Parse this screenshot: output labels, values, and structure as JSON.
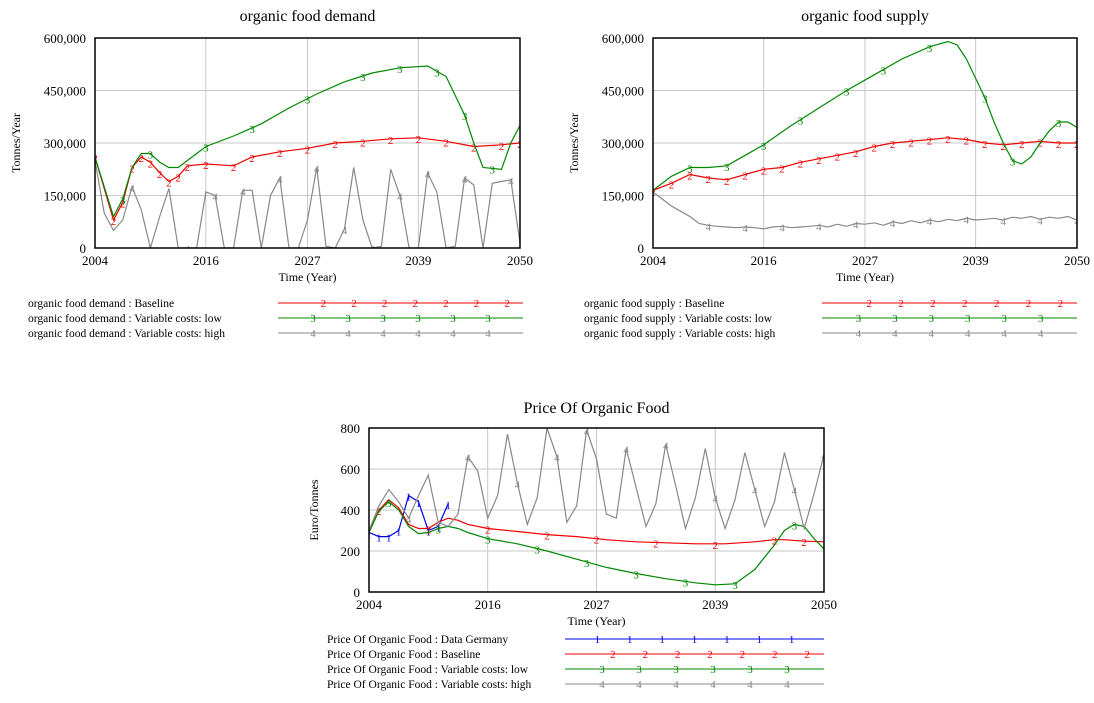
{
  "colors": {
    "data_germany": "#0000ee",
    "baseline": "#ee0000",
    "low": "#008800",
    "high": "#888888",
    "grid": "#c8c8c8"
  },
  "chart_data": [
    {
      "type": "line",
      "title": "organic food demand",
      "xlabel": "Time (Year)",
      "ylabel": "Tonnes/Year",
      "xlim": [
        2004,
        2050
      ],
      "ylim": [
        0,
        600000
      ],
      "xticks": [
        2004,
        2016,
        2027,
        2039,
        2050
      ],
      "xtick_labels": [
        "2004",
        "2016",
        "2027",
        "2039",
        "2050"
      ],
      "yticks": [
        0,
        150000,
        300000,
        450000,
        600000
      ],
      "ytick_labels": [
        "0",
        "150,000",
        "300,000",
        "450,000",
        "600,000"
      ],
      "grid": true,
      "legend_position": "bottom",
      "series": [
        {
          "name": "organic food demand : Baseline",
          "marker": "2",
          "color": "#ee0000",
          "x": [
            2004,
            2006,
            2007,
            2008,
            2009,
            2010,
            2011,
            2012,
            2013,
            2014,
            2016,
            2019,
            2021,
            2024,
            2027,
            2030,
            2033,
            2036,
            2039,
            2042,
            2045,
            2048,
            2050
          ],
          "y": [
            260000,
            80000,
            130000,
            230000,
            260000,
            245000,
            215000,
            190000,
            205000,
            235000,
            240000,
            235000,
            260000,
            275000,
            285000,
            300000,
            305000,
            312000,
            315000,
            305000,
            290000,
            295000,
            300000
          ]
        },
        {
          "name": "organic food demand : Variable costs: low",
          "marker": "3",
          "color": "#008800",
          "x": [
            2004,
            2006,
            2007,
            2008,
            2009,
            2010,
            2011,
            2012,
            2013,
            2014,
            2016,
            2019,
            2022,
            2025,
            2028,
            2031,
            2034,
            2037,
            2040,
            2042,
            2044,
            2045,
            2046,
            2048,
            2049,
            2050
          ],
          "y": [
            260000,
            90000,
            140000,
            230000,
            270000,
            270000,
            245000,
            230000,
            230000,
            250000,
            290000,
            320000,
            355000,
            400000,
            440000,
            475000,
            500000,
            515000,
            520000,
            490000,
            380000,
            300000,
            230000,
            225000,
            300000,
            350000
          ],
          "marker_x": [
            2007,
            2010,
            2016,
            2021,
            2027,
            2033,
            2037,
            2041,
            2044,
            2047
          ]
        },
        {
          "name": "organic food demand : Variable costs: high",
          "marker": "4",
          "color": "#888888",
          "x": [
            2004,
            2005,
            2006,
            2007,
            2008,
            2009,
            2010,
            2011,
            2012,
            2013,
            2014,
            2015,
            2016,
            2017,
            2018,
            2019,
            2020,
            2021,
            2022,
            2023,
            2024,
            2025,
            2026,
            2027,
            2028,
            2029,
            2030,
            2031,
            2032,
            2033,
            2034,
            2035,
            2036,
            2037,
            2038,
            2039,
            2040,
            2041,
            2042,
            2043,
            2044,
            2045,
            2046,
            2047,
            2048,
            2049,
            2050
          ],
          "y": [
            250000,
            100000,
            50000,
            80000,
            175000,
            110000,
            0,
            90000,
            170000,
            0,
            0,
            0,
            160000,
            150000,
            0,
            0,
            165000,
            165000,
            0,
            150000,
            200000,
            0,
            0,
            80000,
            230000,
            5000,
            0,
            55000,
            230000,
            80000,
            0,
            5000,
            225000,
            150000,
            0,
            0,
            215000,
            160000,
            0,
            5000,
            200000,
            180000,
            0,
            185000,
            190000,
            195000,
            15000
          ],
          "marker_x": [
            2008,
            2014,
            2017,
            2020,
            2024,
            2028,
            2031,
            2034,
            2037,
            2040,
            2044,
            2049
          ]
        }
      ]
    },
    {
      "type": "line",
      "title": "organic food supply",
      "xlabel": "Time (Year)",
      "ylabel": "Tonnes/Year",
      "xlim": [
        2004,
        2050
      ],
      "ylim": [
        0,
        600000
      ],
      "xticks": [
        2004,
        2016,
        2027,
        2039,
        2050
      ],
      "xtick_labels": [
        "2004",
        "2016",
        "2027",
        "2039",
        "2050"
      ],
      "yticks": [
        0,
        150000,
        300000,
        450000,
        600000
      ],
      "ytick_labels": [
        "0",
        "150,000",
        "300,000",
        "450,000",
        "600,000"
      ],
      "grid": true,
      "legend_position": "bottom",
      "series": [
        {
          "name": "organic food supply : Baseline",
          "marker": "2",
          "color": "#ee0000",
          "x": [
            2004,
            2006,
            2008,
            2010,
            2012,
            2014,
            2016,
            2018,
            2020,
            2022,
            2024,
            2026,
            2028,
            2030,
            2032,
            2034,
            2036,
            2038,
            2040,
            2042,
            2044,
            2046,
            2048,
            2050
          ],
          "y": [
            165000,
            185000,
            210000,
            200000,
            195000,
            210000,
            225000,
            230000,
            245000,
            255000,
            265000,
            275000,
            290000,
            300000,
            305000,
            310000,
            315000,
            310000,
            300000,
            295000,
            300000,
            305000,
            300000,
            300000
          ]
        },
        {
          "name": "organic food supply : Variable costs: low",
          "marker": "3",
          "color": "#008800",
          "x": [
            2004,
            2006,
            2008,
            2010,
            2012,
            2014,
            2016,
            2019,
            2022,
            2025,
            2028,
            2031,
            2034,
            2036,
            2037,
            2038,
            2040,
            2041,
            2042,
            2043,
            2044,
            2045,
            2046,
            2047,
            2048,
            2049,
            2050
          ],
          "y": [
            165000,
            205000,
            230000,
            230000,
            235000,
            265000,
            295000,
            350000,
            400000,
            450000,
            495000,
            540000,
            575000,
            590000,
            580000,
            540000,
            430000,
            360000,
            300000,
            250000,
            240000,
            260000,
            300000,
            335000,
            360000,
            360000,
            345000
          ],
          "marker_x": [
            2008,
            2012,
            2016,
            2020,
            2025,
            2029,
            2034,
            2040,
            2043,
            2048
          ]
        },
        {
          "name": "organic food supply : Variable costs: high",
          "marker": "4",
          "color": "#888888",
          "x": [
            2004,
            2005,
            2006,
            2007,
            2008,
            2009,
            2010,
            2011,
            2012,
            2013,
            2014,
            2015,
            2016,
            2017,
            2018,
            2019,
            2020,
            2021,
            2022,
            2023,
            2024,
            2025,
            2026,
            2027,
            2028,
            2029,
            2030,
            2031,
            2032,
            2033,
            2034,
            2035,
            2036,
            2037,
            2038,
            2039,
            2040,
            2041,
            2042,
            2043,
            2044,
            2045,
            2046,
            2047,
            2048,
            2049,
            2050
          ],
          "y": [
            160000,
            140000,
            120000,
            105000,
            90000,
            70000,
            65000,
            62000,
            60000,
            58000,
            60000,
            58000,
            55000,
            60000,
            62000,
            58000,
            60000,
            62000,
            65000,
            60000,
            68000,
            62000,
            70000,
            68000,
            72000,
            65000,
            75000,
            70000,
            78000,
            72000,
            80000,
            75000,
            82000,
            78000,
            85000,
            80000,
            82000,
            85000,
            80000,
            88000,
            85000,
            90000,
            82000,
            88000,
            85000,
            90000,
            80000
          ],
          "marker_x": [
            2010,
            2014,
            2018,
            2022,
            2026,
            2030,
            2034,
            2038,
            2042,
            2046,
            2050
          ]
        }
      ]
    },
    {
      "type": "line",
      "title": "Price Of Organic Food",
      "xlabel": "Time (Year)",
      "ylabel": "Euro/Tonnes",
      "xlim": [
        2004,
        2050
      ],
      "ylim": [
        0,
        800
      ],
      "xticks": [
        2004,
        2016,
        2027,
        2039,
        2050
      ],
      "xtick_labels": [
        "2004",
        "2016",
        "2027",
        "2039",
        "2050"
      ],
      "yticks": [
        0,
        200,
        400,
        600,
        800
      ],
      "ytick_labels": [
        "0",
        "200",
        "400",
        "600",
        "800"
      ],
      "grid": true,
      "legend_position": "bottom",
      "series": [
        {
          "name": "Price Of Organic Food : Data Germany",
          "marker": "1",
          "color": "#0000ee",
          "x": [
            2004,
            2005,
            2006,
            2007,
            2008,
            2009,
            2010,
            2011,
            2012
          ],
          "y": [
            290,
            270,
            270,
            300,
            470,
            440,
            300,
            320,
            430
          ]
        },
        {
          "name": "Price Of Organic Food : Baseline",
          "marker": "2",
          "color": "#ee0000",
          "x": [
            2004,
            2005,
            2006,
            2007,
            2008,
            2009,
            2010,
            2011,
            2012,
            2013,
            2014,
            2016,
            2019,
            2022,
            2025,
            2028,
            2031,
            2034,
            2037,
            2040,
            2043,
            2045,
            2046,
            2048,
            2050
          ],
          "y": [
            290,
            400,
            450,
            410,
            330,
            310,
            310,
            340,
            360,
            350,
            330,
            310,
            295,
            280,
            270,
            255,
            245,
            240,
            235,
            235,
            245,
            255,
            255,
            248,
            245
          ],
          "marker_x": [
            2005,
            2010,
            2016,
            2022,
            2027,
            2033,
            2039,
            2045,
            2048
          ]
        },
        {
          "name": "Price Of Organic Food : Variable costs: low",
          "marker": "3",
          "color": "#008800",
          "x": [
            2004,
            2005,
            2006,
            2007,
            2008,
            2009,
            2010,
            2011,
            2012,
            2013,
            2014,
            2016,
            2019,
            2022,
            2025,
            2028,
            2031,
            2034,
            2037,
            2039,
            2041,
            2043,
            2045,
            2046,
            2047,
            2048,
            2049,
            2050
          ],
          "y": [
            290,
            395,
            440,
            400,
            320,
            285,
            290,
            310,
            320,
            310,
            290,
            260,
            235,
            200,
            160,
            120,
            90,
            65,
            45,
            35,
            40,
            110,
            230,
            300,
            330,
            320,
            260,
            210
          ],
          "marker_x": [
            2006,
            2011,
            2016,
            2021,
            2026,
            2031,
            2036,
            2041,
            2047
          ]
        },
        {
          "name": "Price Of Organic Food : Variable costs: high",
          "marker": "4",
          "color": "#888888",
          "x": [
            2004,
            2005,
            2006,
            2007,
            2008,
            2009,
            2010,
            2011,
            2012,
            2013,
            2014,
            2015,
            2016,
            2017,
            2018,
            2019,
            2020,
            2021,
            2022,
            2023,
            2024,
            2025,
            2026,
            2027,
            2028,
            2029,
            2030,
            2031,
            2032,
            2033,
            2034,
            2035,
            2036,
            2037,
            2038,
            2039,
            2040,
            2041,
            2042,
            2043,
            2044,
            2045,
            2046,
            2047,
            2048,
            2049,
            2050
          ],
          "y": [
            300,
            420,
            500,
            440,
            360,
            470,
            570,
            340,
            320,
            380,
            660,
            590,
            360,
            470,
            770,
            530,
            330,
            460,
            800,
            660,
            340,
            420,
            790,
            650,
            380,
            360,
            700,
            510,
            320,
            430,
            720,
            520,
            310,
            460,
            700,
            460,
            310,
            450,
            680,
            500,
            320,
            440,
            680,
            500,
            310,
            480,
            670
          ],
          "marker_x": [
            2008,
            2011,
            2014,
            2019,
            2023,
            2026,
            2030,
            2034,
            2039,
            2043,
            2047,
            2050
          ]
        }
      ]
    }
  ]
}
